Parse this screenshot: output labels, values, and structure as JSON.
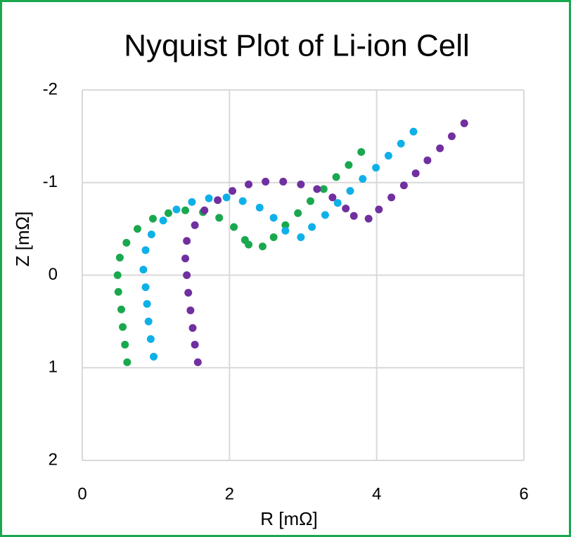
{
  "chart_data": {
    "type": "scatter",
    "title": "Nyquist Plot of Li-ion Cell",
    "x_label": "R [mΩ]",
    "y_label": "Z [mΩ]",
    "xlim": [
      0,
      6
    ],
    "xticks": [
      0,
      2,
      4,
      6
    ],
    "ylim": [
      -2,
      2
    ],
    "yticks": [
      -2,
      -1,
      0,
      1,
      2
    ],
    "y_reversed": true,
    "grid": true,
    "series": [
      {
        "color": "#1aa84f",
        "x": [
          0.61,
          0.58,
          0.55,
          0.53,
          0.49,
          0.48,
          0.51,
          0.6,
          0.75,
          0.96,
          1.17,
          1.4,
          1.64,
          1.86,
          2.06,
          2.21,
          2.26,
          2.45,
          2.6,
          2.76,
          2.93,
          3.1,
          3.28,
          3.45,
          3.62,
          3.79
        ],
        "values": [
          0.94,
          0.75,
          0.56,
          0.37,
          0.18,
          0.0,
          -0.19,
          -0.35,
          -0.5,
          -0.61,
          -0.67,
          -0.7,
          -0.68,
          -0.62,
          -0.52,
          -0.38,
          -0.33,
          -0.31,
          -0.41,
          -0.54,
          -0.67,
          -0.8,
          -0.93,
          -1.06,
          -1.19,
          -1.33
        ]
      },
      {
        "color": "#0fb0e8",
        "x": [
          0.97,
          0.93,
          0.9,
          0.88,
          0.86,
          0.83,
          0.86,
          0.94,
          1.1,
          1.28,
          1.49,
          1.72,
          1.96,
          2.18,
          2.41,
          2.6,
          2.76,
          2.97,
          3.12,
          3.3,
          3.47,
          3.64,
          3.81,
          3.99,
          4.16,
          4.33,
          4.5
        ],
        "values": [
          0.88,
          0.69,
          0.5,
          0.31,
          0.13,
          -0.06,
          -0.27,
          -0.44,
          -0.59,
          -0.71,
          -0.79,
          -0.83,
          -0.84,
          -0.8,
          -0.73,
          -0.62,
          -0.48,
          -0.41,
          -0.52,
          -0.65,
          -0.78,
          -0.91,
          -1.04,
          -1.16,
          -1.29,
          -1.42,
          -1.55
        ]
      },
      {
        "color": "#7030a0",
        "x": [
          1.57,
          1.53,
          1.5,
          1.47,
          1.44,
          1.42,
          1.4,
          1.42,
          1.53,
          1.66,
          1.84,
          2.04,
          2.26,
          2.49,
          2.73,
          2.97,
          3.19,
          3.4,
          3.58,
          3.69,
          3.89,
          4.03,
          4.2,
          4.37,
          4.53,
          4.69,
          4.86,
          5.02,
          5.19
        ],
        "values": [
          0.94,
          0.75,
          0.57,
          0.38,
          0.19,
          0.0,
          -0.18,
          -0.37,
          -0.54,
          -0.7,
          -0.81,
          -0.91,
          -0.98,
          -1.01,
          -1.01,
          -0.98,
          -0.93,
          -0.84,
          -0.72,
          -0.64,
          -0.61,
          -0.71,
          -0.84,
          -0.97,
          -1.1,
          -1.24,
          -1.37,
          -1.5,
          -1.64
        ]
      }
    ]
  }
}
